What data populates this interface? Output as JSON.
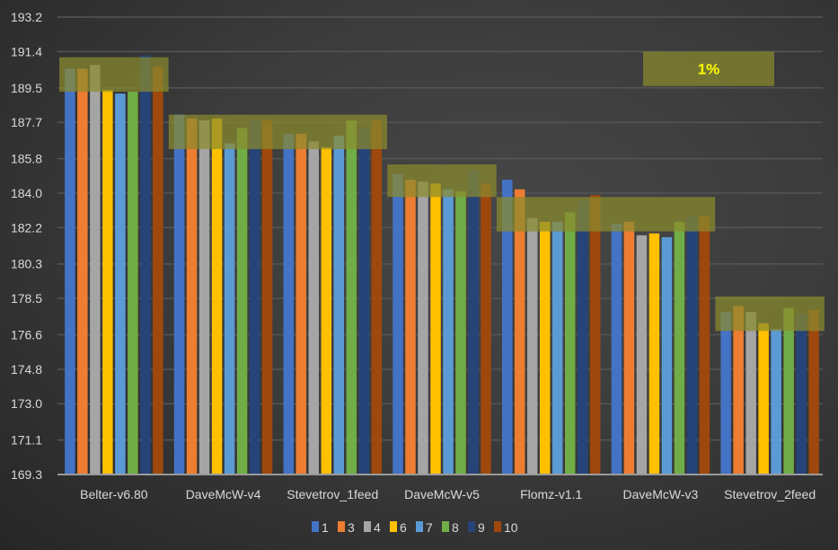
{
  "chart_data": {
    "type": "bar",
    "title": "",
    "xlabel": "",
    "ylabel": "",
    "ylim": [
      169.3,
      193.2
    ],
    "yticks": [
      "169.3",
      "171.1",
      "173.0",
      "174.8",
      "176.6",
      "178.5",
      "180.3",
      "182.2",
      "184.0",
      "185.8",
      "187.7",
      "189.5",
      "191.4",
      "193.2"
    ],
    "grid": true,
    "legend_position": "bottom",
    "categories": [
      "Belter-v6.80",
      "DaveMcW-v4",
      "Stevetrov_1feed",
      "DaveMcW-v5",
      "Flomz-v1.1",
      "DaveMcW-v3",
      "Stevetrov_2feed"
    ],
    "series": [
      {
        "name": "1",
        "color": "#4472c4",
        "values": [
          190.5,
          188.1,
          187.1,
          185.0,
          184.7,
          182.4,
          177.8
        ]
      },
      {
        "name": "3",
        "color": "#ed7d31",
        "values": [
          190.5,
          187.9,
          187.1,
          184.7,
          184.2,
          182.5,
          178.1
        ]
      },
      {
        "name": "4",
        "color": "#a5a5a5",
        "values": [
          190.7,
          187.8,
          186.7,
          184.6,
          182.7,
          181.8,
          177.8
        ]
      },
      {
        "name": "6",
        "color": "#ffc000",
        "values": [
          189.4,
          187.9,
          186.4,
          184.5,
          182.5,
          181.9,
          177.2
        ]
      },
      {
        "name": "7",
        "color": "#5b9bd5",
        "values": [
          189.2,
          186.6,
          187.0,
          184.2,
          182.5,
          181.7,
          176.9
        ]
      },
      {
        "name": "8",
        "color": "#70ad47",
        "values": [
          189.3,
          187.4,
          187.8,
          184.1,
          183.0,
          182.5,
          178.0
        ]
      },
      {
        "name": "9",
        "color": "#264478",
        "values": [
          191.2,
          187.8,
          187.4,
          185.2,
          183.6,
          182.8,
          177.7
        ]
      },
      {
        "name": "10",
        "color": "#9e480e",
        "values": [
          190.6,
          187.8,
          187.8,
          184.5,
          183.9,
          182.8,
          177.9
        ]
      }
    ],
    "highlight_bands": [
      {
        "categories": [
          "Belter-v6.80"
        ],
        "range": [
          189.3,
          191.1
        ]
      },
      {
        "categories": [
          "DaveMcW-v4",
          "Stevetrov_1feed"
        ],
        "range": [
          186.3,
          188.1
        ]
      },
      {
        "categories": [
          "DaveMcW-v5"
        ],
        "range": [
          183.8,
          185.5
        ]
      },
      {
        "categories": [
          "Flomz-v1.1",
          "DaveMcW-v3"
        ],
        "range": [
          182.0,
          183.8
        ]
      },
      {
        "categories": [
          "Stevetrov_2feed"
        ],
        "range": [
          176.8,
          178.6
        ]
      }
    ],
    "annotation": {
      "text": "1%",
      "range": [
        189.6,
        191.4
      ]
    },
    "band_color": "#8a8a2e",
    "annotation_color": "#ffff00"
  }
}
